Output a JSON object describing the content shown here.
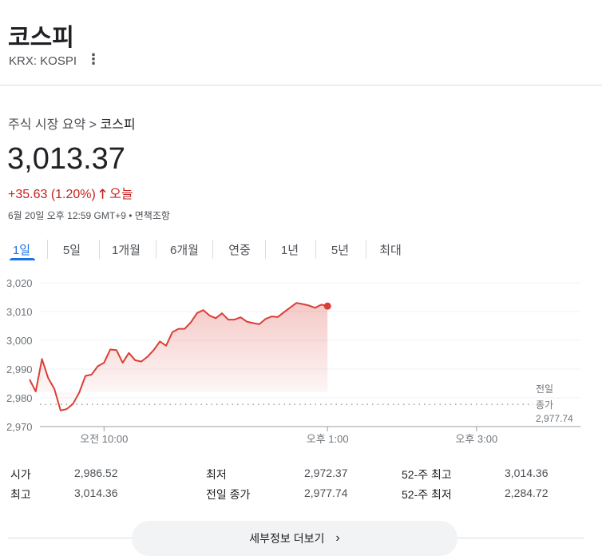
{
  "header": {
    "title": "코스피",
    "ticker": "KRX: KOSPI",
    "more_icon": "more-vert-icon"
  },
  "breadcrumb": {
    "parent": "주식 시장 요약",
    "sep": ">",
    "current": "코스피"
  },
  "quote": {
    "price": "3,013.37",
    "change": "+35.63 (1.20%)",
    "direction": "up",
    "period": "오늘",
    "timestamp": "6월 20일 오후 12:59 GMT+9 • 면책조항",
    "color_up": "#c5221f"
  },
  "tabs": [
    {
      "label": "1일",
      "active": true
    },
    {
      "label": "5일"
    },
    {
      "label": "1개월"
    },
    {
      "label": "6개월"
    },
    {
      "label": "연중"
    },
    {
      "label": "1년"
    },
    {
      "label": "5년"
    },
    {
      "label": "최대"
    }
  ],
  "chart_data": {
    "type": "area",
    "x_start": "09:00",
    "x_step_minutes": 5,
    "values": [
      2986.4,
      2982.2,
      2993.5,
      2986.9,
      2983.1,
      2975.6,
      2976.1,
      2977.9,
      2981.8,
      2987.6,
      2988.1,
      2991.0,
      2992.2,
      2996.8,
      2996.6,
      2992.2,
      2995.6,
      2993.1,
      2992.6,
      2994.3,
      2996.6,
      2999.6,
      2998.1,
      3002.8,
      3004.0,
      3004.0,
      3006.3,
      3009.5,
      3010.5,
      3008.6,
      3007.7,
      3009.4,
      3007.2,
      3007.2,
      3008.0,
      3006.5,
      3006.0,
      3005.6,
      3007.4,
      3008.3,
      3008.1,
      3009.8,
      3011.4,
      3013.0,
      3012.6,
      3012.1,
      3011.3,
      3012.4,
      3011.9
    ],
    "ylim": [
      2970,
      3020
    ],
    "yticks": [
      "3,020",
      "3,010",
      "3,000",
      "2,990",
      "2,980",
      "2,970"
    ],
    "xticks": [
      {
        "time": "10:00",
        "label": "오전 10:00"
      },
      {
        "time": "13:00",
        "label": "오후 1:00"
      },
      {
        "time": "15:00",
        "label": "오후 3:00"
      }
    ],
    "xlim": [
      "09:00",
      "16:24"
    ],
    "grid": true,
    "line_color": "#d93f36",
    "previous_close": {
      "value": 2977.74,
      "label_1": "전일",
      "label_2": "종가",
      "label_3": "2,977.74"
    }
  },
  "stats": [
    [
      {
        "label": "시가",
        "value": "2,986.52"
      },
      {
        "label": "최저",
        "value": "2,972.37"
      },
      {
        "label": "52-주 최고",
        "value": "3,014.36"
      }
    ],
    [
      {
        "label": "최고",
        "value": "3,014.36"
      },
      {
        "label": "전일 종가",
        "value": "2,977.74"
      },
      {
        "label": "52-주 최저",
        "value": "2,284.72"
      }
    ]
  ],
  "more_button": {
    "label": "세부정보 더보기",
    "icon": "chevron-right-icon"
  }
}
